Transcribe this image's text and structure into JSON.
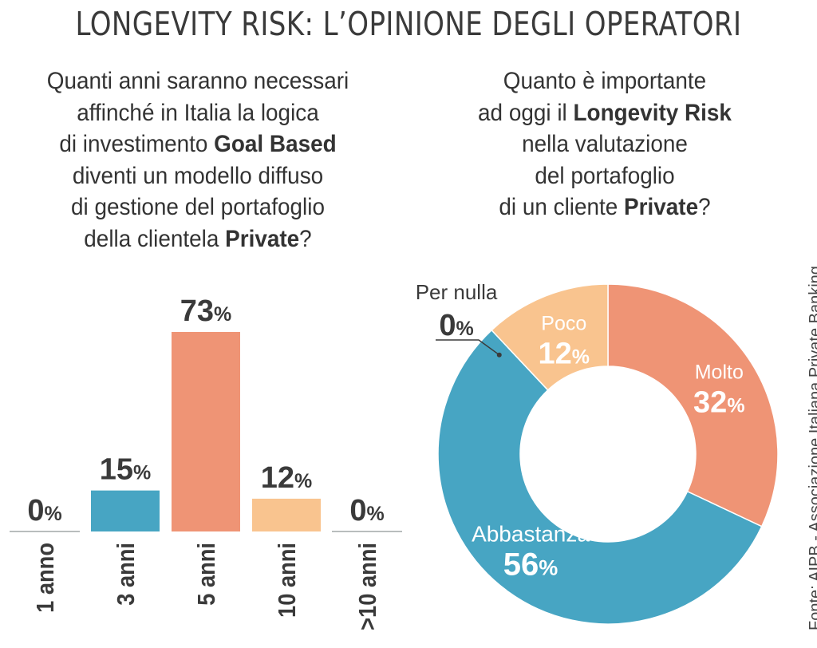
{
  "title": "LONGEVITY RISK: L’OPINIONE DEGLI OPERATORI",
  "question_left": {
    "lines": [
      [
        {
          "t": "Quanti anni saranno necessari",
          "b": false
        }
      ],
      [
        {
          "t": "affinché in Italia la logica",
          "b": false
        }
      ],
      [
        {
          "t": "di investimento ",
          "b": false
        },
        {
          "t": "Goal Based",
          "b": true
        }
      ],
      [
        {
          "t": "diventi un modello diffuso",
          "b": false
        }
      ],
      [
        {
          "t": "di gestione del portafoglio",
          "b": false
        }
      ],
      [
        {
          "t": "della clientela ",
          "b": false
        },
        {
          "t": "Private",
          "b": true
        },
        {
          "t": "?",
          "b": false
        }
      ]
    ]
  },
  "question_right": {
    "lines": [
      [
        {
          "t": "Quanto è importante",
          "b": false
        }
      ],
      [
        {
          "t": "ad oggi il ",
          "b": false
        },
        {
          "t": "Longevity Risk",
          "b": true
        }
      ],
      [
        {
          "t": "nella valutazione",
          "b": false
        }
      ],
      [
        {
          "t": "del portafoglio",
          "b": false
        }
      ],
      [
        {
          "t": "di un cliente ",
          "b": false
        },
        {
          "t": "Private",
          "b": true
        },
        {
          "t": "?",
          "b": false
        }
      ]
    ]
  },
  "source": "Fonte: AIPB - Associazione Italiana Private Banking",
  "percent_sign": "%",
  "chart_data": [
    {
      "type": "bar",
      "categories": [
        "1 anno",
        "3 anni",
        "5 anni",
        "10 anni",
        ">10 anni"
      ],
      "values": [
        0,
        15,
        73,
        12,
        0
      ],
      "colors": [
        "#b9bdbd",
        "#47a5c3",
        "#ef9475",
        "#f9c48f",
        "#b9bdbd"
      ],
      "ylim": [
        0,
        73
      ]
    },
    {
      "type": "pie",
      "style": "donut",
      "slices": [
        {
          "label": "Molto",
          "value": 32,
          "color": "#ef9475"
        },
        {
          "label": "Abbastanza",
          "value": 56,
          "color": "#47a5c3"
        },
        {
          "label": "Per nulla",
          "value": 0,
          "color": "#cfd3d3"
        },
        {
          "label": "Poco",
          "value": 12,
          "color": "#f9c48f"
        }
      ]
    }
  ]
}
